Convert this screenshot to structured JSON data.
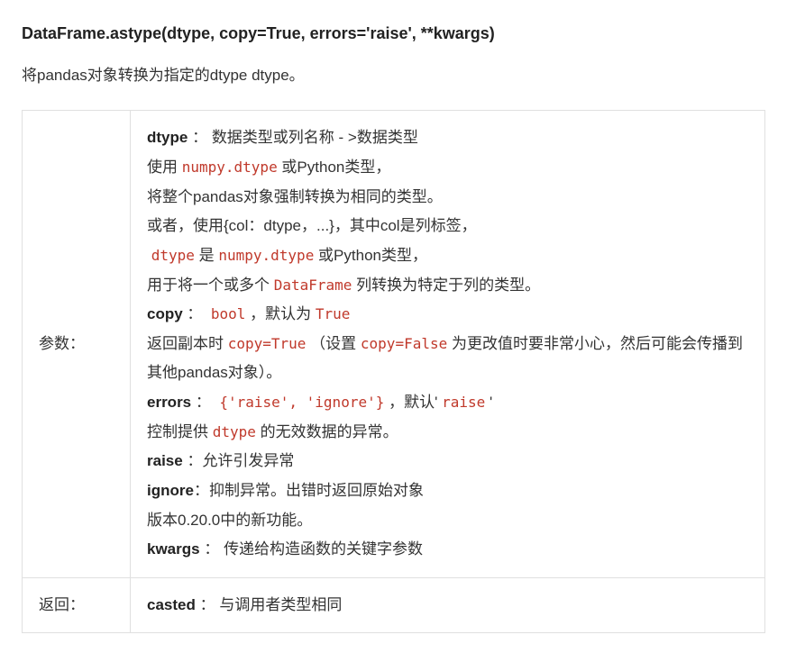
{
  "signature": "DataFrame.astype(dtype, copy=True, errors='raise', **kwargs)",
  "description": "将pandas对象转换为指定的dtype dtype。",
  "labels": {
    "params": "参数：",
    "returns": "返回："
  },
  "params": {
    "dtype": {
      "name": "dtype",
      "sep": "：",
      "type_desc": "数据类型或列名称 - >数据类型",
      "line2_before": "使用 ",
      "line2_code": "numpy.dtype",
      "line2_after": " 或Python类型，",
      "line3": "将整个pandas对象强制转换为相同的类型。",
      "line4": "或者，使用{col：dtype，...}，其中col是列标签，",
      "line5_code1": "dtype",
      "line5_mid": " 是 ",
      "line5_code2": "numpy.dtype",
      "line5_after": " 或Python类型，",
      "line6_before": "用于将一个或多个 ",
      "line6_code": "DataFrame",
      "line6_after": " 列转换为特定于列的类型。"
    },
    "copy": {
      "name": "copy",
      "sep": "：",
      "type_code": "bool",
      "type_mid": "，默认为 ",
      "type_code2": "True",
      "line2_before": "返回副本时 ",
      "line2_code": "copy=True",
      "line2_mid": "（设置 ",
      "line2_code2": "copy=False",
      "line2_after": " 为更改值时要非常小心，然后可能会传播到其他pandas对象）。"
    },
    "errors": {
      "name": "errors",
      "sep": "：",
      "type_code": "{'raise', 'ignore'}",
      "type_mid": "，默认' ",
      "type_code2": "raise",
      "type_after": " '",
      "line2_before": "控制提供 ",
      "line2_code": "dtype",
      "line2_after": " 的无效数据的异常。"
    },
    "raise": {
      "name": "raise",
      "sep": "：",
      "desc": "允许引发异常"
    },
    "ignore": {
      "name": "ignore",
      "sep": "：",
      "desc": "抑制异常。出错时返回原始对象"
    },
    "version_note": "版本0.20.0中的新功能。",
    "kwargs": {
      "name": "kwargs",
      "sep": "：",
      "desc": "传递给构造函数的关键字参数"
    }
  },
  "returns": {
    "name": "casted",
    "sep": "：",
    "desc": "与调用者类型相同"
  },
  "colors": {
    "code_color": "#c0392b",
    "text_color": "#333333",
    "border_color": "#e0e0e0",
    "bg_color": "#ffffff"
  }
}
